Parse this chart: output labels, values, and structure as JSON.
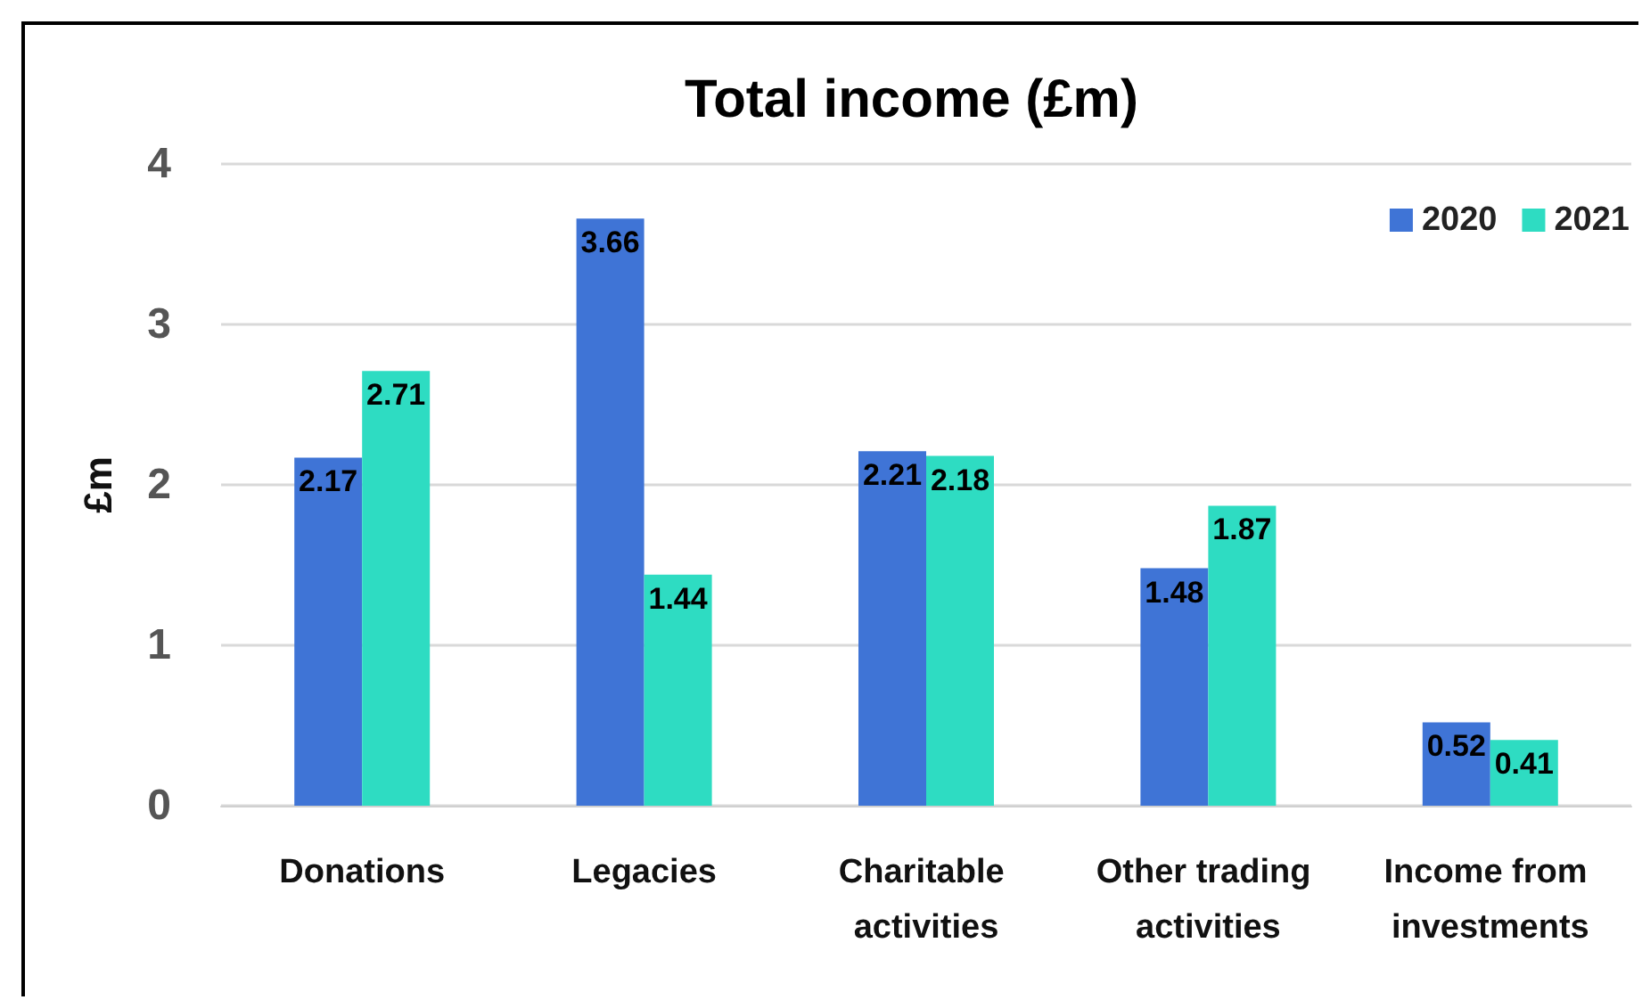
{
  "chart_data": {
    "type": "bar",
    "title": "Total income (£m)",
    "ylabel": "£m",
    "categories": [
      "Donations",
      "Legacies",
      "Charitable activities",
      "Other trading activities",
      "Income from investments"
    ],
    "series": [
      {
        "name": "2020",
        "color": "#3f74d6",
        "values": [
          2.17,
          3.66,
          2.21,
          1.48,
          0.52
        ]
      },
      {
        "name": "2021",
        "color": "#2edcc2",
        "values": [
          2.71,
          1.44,
          2.18,
          1.87,
          0.41
        ]
      }
    ],
    "ylim": [
      0,
      4
    ],
    "yticks": [
      0,
      1,
      2,
      3,
      4
    ],
    "grid": "y",
    "legend": "top right",
    "data_labels": true
  }
}
